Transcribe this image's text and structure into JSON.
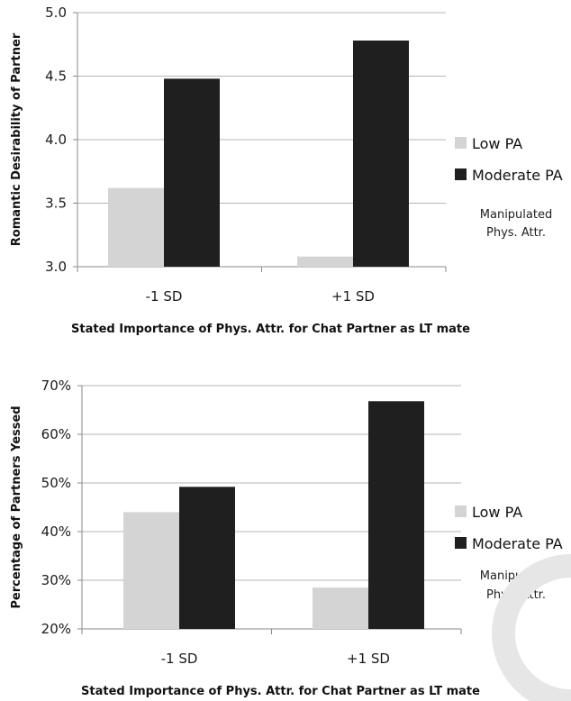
{
  "chart_data": [
    {
      "type": "bar",
      "categories": [
        "-1 SD",
        "+1 SD"
      ],
      "series": [
        {
          "name": "Low PA",
          "values": [
            3.62,
            3.08
          ],
          "color": "#d4d4d4"
        },
        {
          "name": "Moderate PA",
          "values": [
            4.48,
            4.78
          ],
          "color": "#1f1f1f"
        }
      ],
      "yticks": [
        "3.0",
        "3.5",
        "4.0",
        "4.5",
        "5.0"
      ],
      "ylim": [
        3.0,
        5.0
      ],
      "ylabel": "Romantic Desirability of Partner",
      "xlabel": "Stated Importance of Phys. Attr. for Chat Partner as LT mate",
      "legend_title": [
        "Manipulated",
        "Phys. Attr."
      ],
      "legend_position": "right",
      "grid": true
    },
    {
      "type": "bar",
      "categories": [
        "-1 SD",
        "+1 SD"
      ],
      "series": [
        {
          "name": "Low PA",
          "values": [
            44,
            28.5
          ],
          "color": "#d4d4d4"
        },
        {
          "name": "Moderate PA",
          "values": [
            49.2,
            66.8
          ],
          "color": "#1f1f1f"
        }
      ],
      "yticks": [
        "20%",
        "30%",
        "40%",
        "50%",
        "60%",
        "70%"
      ],
      "ylim": [
        20,
        70
      ],
      "ylabel": "Percentage of Partners Yessed",
      "xlabel": "Stated Importance of Phys. Attr. for Chat Partner as LT mate",
      "legend_title": [
        "Manipulated",
        "Phys. Attr."
      ],
      "legend_position": "right",
      "grid": true
    }
  ]
}
